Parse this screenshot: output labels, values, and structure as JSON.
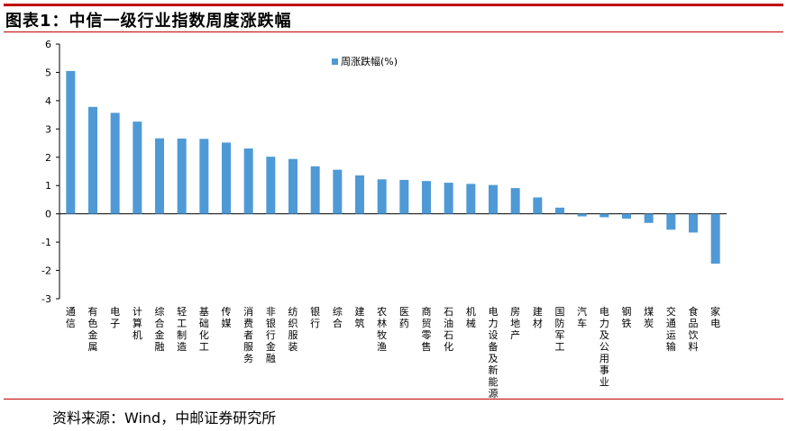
{
  "header": {
    "title": "图表1：中信一级行业指数周度涨跌幅"
  },
  "footer": {
    "source": "资料来源：Wind，中邮证券研究所"
  },
  "colors": {
    "bar": "#4f9ad6",
    "rule": "#c00000",
    "axis": "#000000"
  },
  "chart_data": {
    "type": "bar",
    "categories": [
      "通信",
      "有色金属",
      "电子",
      "计算机",
      "综合金融",
      "轻工制造",
      "基础化工",
      "传媒",
      "消费者服务",
      "非银行金融",
      "纺织服装",
      "银行",
      "综合",
      "建筑",
      "农林牧渔",
      "医药",
      "商贸零售",
      "石油石化",
      "机械",
      "电力设备及新能源",
      "房地产",
      "建材",
      "国防军工",
      "汽车",
      "电力及公用事业",
      "钢铁",
      "煤炭",
      "交通运输",
      "食品饮料",
      "家电"
    ],
    "series": [
      {
        "name": "周涨跌幅(%)",
        "values": [
          5.05,
          3.78,
          3.57,
          3.26,
          2.67,
          2.66,
          2.65,
          2.52,
          2.31,
          2.02,
          1.94,
          1.68,
          1.56,
          1.36,
          1.22,
          1.2,
          1.16,
          1.1,
          1.06,
          1.02,
          0.91,
          0.58,
          0.22,
          -0.09,
          -0.12,
          -0.17,
          -0.32,
          -0.56,
          -0.66,
          -1.76
        ]
      }
    ],
    "title": "",
    "xlabel": "",
    "ylabel": "",
    "ylim": [
      -3,
      6
    ],
    "yticks": [
      -3,
      -2,
      -1,
      0,
      1,
      2,
      3,
      4,
      5,
      6
    ],
    "grid": false,
    "legend_position": "top-center"
  }
}
